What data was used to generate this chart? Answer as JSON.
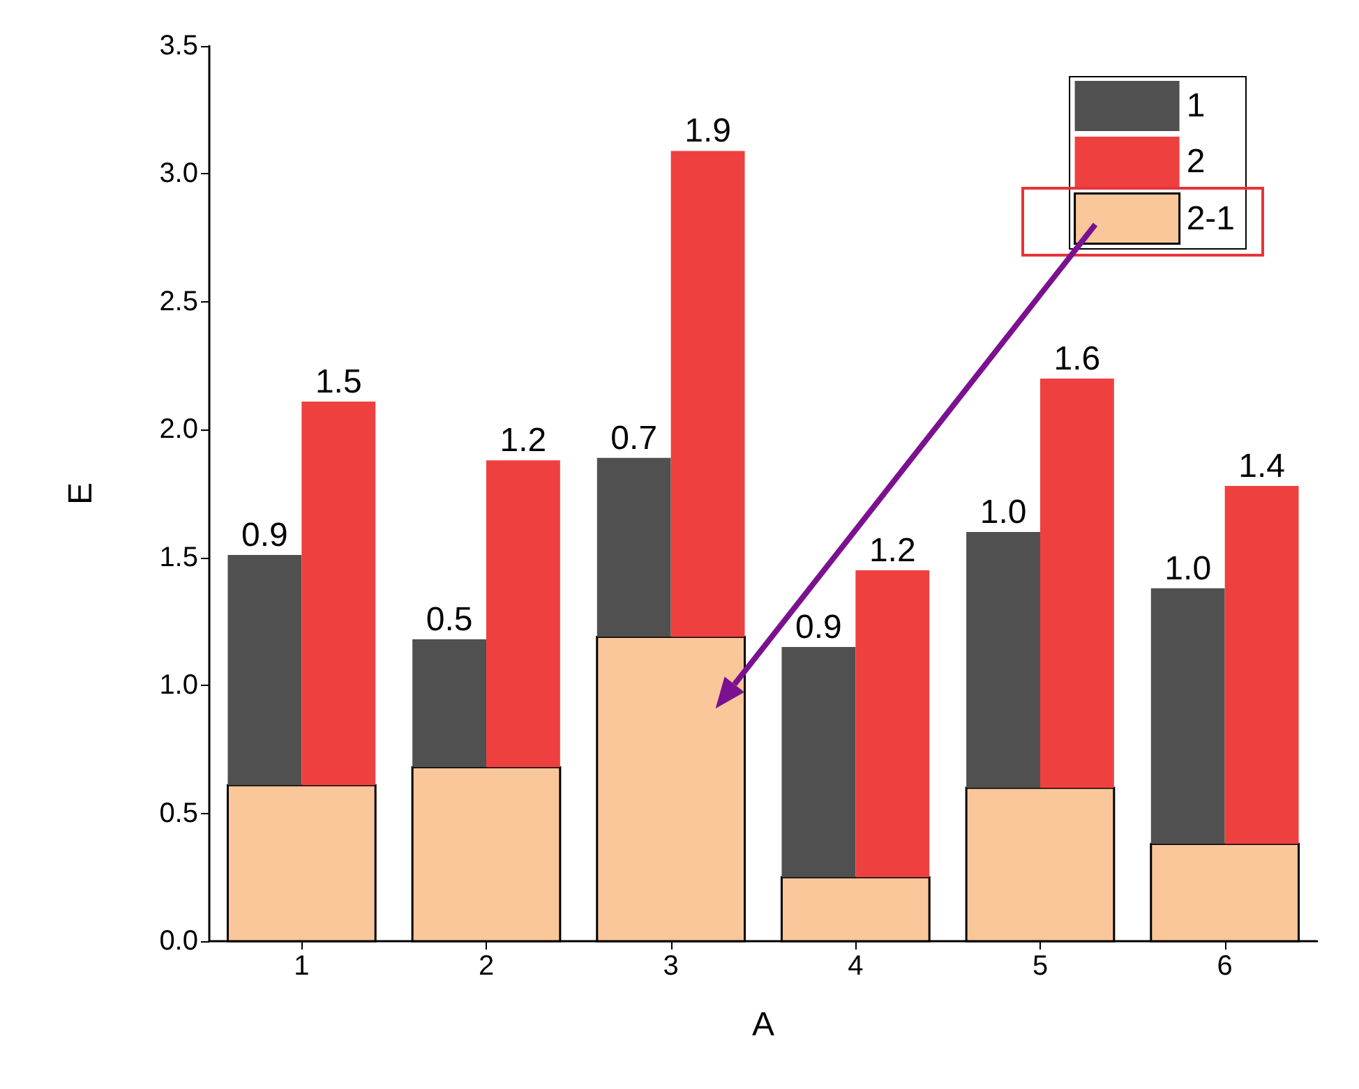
{
  "chart_data": {
    "type": "bar",
    "xlabel": "A",
    "ylabel": "E",
    "categories": [
      "1",
      "2",
      "3",
      "4",
      "5",
      "6"
    ],
    "series": [
      {
        "name": "1",
        "color": "#505050",
        "base": [
          0.61,
          0.68,
          1.19,
          0.25,
          0.6,
          0.38
        ],
        "values": [
          0.9,
          0.5,
          0.7,
          0.9,
          1.0,
          1.0
        ],
        "value_labels": [
          "0.9",
          "0.5",
          "0.7",
          "0.9",
          "1.0",
          "1.0"
        ]
      },
      {
        "name": "2",
        "color": "#ef4040",
        "base": [
          0.61,
          0.68,
          1.19,
          0.25,
          0.6,
          0.38
        ],
        "values": [
          1.5,
          1.2,
          1.9,
          1.2,
          1.6,
          1.4
        ],
        "value_labels": [
          "1.5",
          "1.2",
          "1.9",
          "1.2",
          "1.6",
          "1.4"
        ]
      },
      {
        "name": "2-1",
        "color": "#f9c799",
        "values": [
          0.61,
          0.68,
          1.19,
          0.25,
          0.6,
          0.38
        ]
      }
    ],
    "ylim": [
      0,
      3.5
    ],
    "yticks": [
      {
        "value": 0,
        "label": "0.0"
      },
      {
        "value": 0.5,
        "label": "0.5"
      },
      {
        "value": 1,
        "label": "1.0"
      },
      {
        "value": 1.5,
        "label": "1.5"
      },
      {
        "value": 2,
        "label": "2.0"
      },
      {
        "value": 2.5,
        "label": "2.5"
      },
      {
        "value": 3,
        "label": "3.0"
      },
      {
        "value": 3.5,
        "label": "3.5"
      }
    ],
    "grid": false,
    "legend": "top right"
  }
}
